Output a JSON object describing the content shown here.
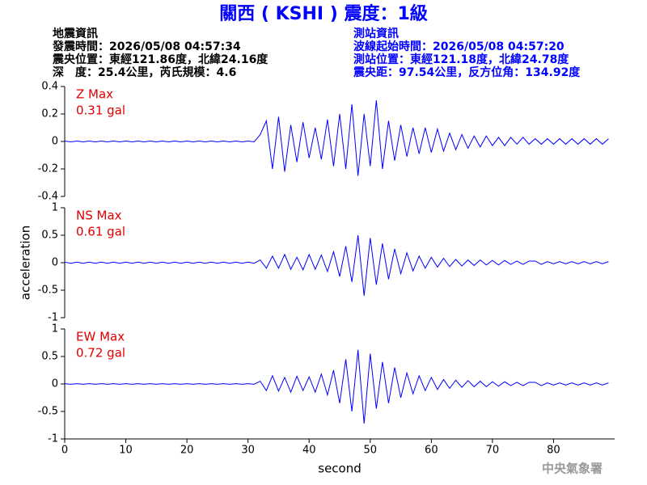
{
  "header": {
    "title": "關西 ( KSHI ) 震度：1級",
    "left": [
      "地震資訊",
      "發震時間：2026/05/08 04:57:34",
      "震央位置：東經121.86度，北緯24.16度",
      "深　度：25.4公里，芮氏規模：4.6"
    ],
    "right": [
      "測站資訊",
      "波線起始時間：2026/05/08 04:57:20",
      "測站位置：東經121.18度，北緯24.78度",
      "震央距：97.54公里，反方位角：134.92度"
    ]
  },
  "footer": "中央氣象署",
  "chart_data": [
    {
      "type": "line",
      "annotation": "0.31 gal",
      "xlim": [
        0,
        90
      ],
      "ylim": [
        -0.4,
        0.4
      ],
      "yticks": [
        0.4,
        0.2,
        0,
        -0.2,
        -0.4
      ],
      "x": [
        0,
        1,
        2,
        3,
        4,
        5,
        6,
        7,
        8,
        9,
        10,
        11,
        12,
        13,
        14,
        15,
        16,
        17,
        18,
        19,
        20,
        21,
        22,
        23,
        24,
        25,
        26,
        27,
        28,
        29,
        30,
        31,
        32,
        33,
        34,
        35,
        36,
        37,
        38,
        39,
        40,
        41,
        42,
        43,
        44,
        45,
        46,
        47,
        48,
        49,
        50,
        51,
        52,
        53,
        54,
        55,
        56,
        57,
        58,
        59,
        60,
        61,
        62,
        63,
        64,
        65,
        66,
        67,
        68,
        69,
        70,
        71,
        72,
        73,
        74,
        75,
        76,
        77,
        78,
        79,
        80,
        81,
        82,
        83,
        84,
        85,
        86,
        87,
        88,
        89
      ],
      "series": [
        {
          "name": "Z Max",
          "color": "#0000ff",
          "values": [
            0.003,
            -0.003,
            0.003,
            -0.003,
            0.003,
            -0.003,
            0.003,
            -0.003,
            0.003,
            -0.003,
            0.003,
            -0.003,
            0.003,
            -0.003,
            0.003,
            -0.003,
            0.003,
            -0.003,
            0.003,
            -0.003,
            0.003,
            -0.003,
            0.003,
            -0.003,
            0.003,
            -0.003,
            0.003,
            -0.003,
            0.003,
            -0.003,
            0.003,
            -0.003,
            0.05,
            0.15,
            -0.2,
            0.18,
            -0.22,
            0.12,
            -0.15,
            0.14,
            -0.12,
            0.1,
            -0.13,
            0.16,
            -0.18,
            0.2,
            -0.2,
            0.27,
            -0.25,
            0.2,
            -0.18,
            0.3,
            -0.2,
            0.15,
            -0.14,
            0.12,
            -0.11,
            0.1,
            -0.09,
            0.1,
            -0.08,
            0.09,
            -0.07,
            0.06,
            -0.06,
            0.05,
            -0.05,
            0.04,
            -0.04,
            0.04,
            -0.03,
            0.03,
            -0.03,
            0.03,
            -0.02,
            0.03,
            -0.02,
            0.02,
            -0.02,
            0.02,
            -0.02,
            0.02,
            -0.02,
            0.02,
            -0.02,
            0.02,
            -0.02,
            0.02,
            -0.02,
            0.02
          ]
        }
      ]
    },
    {
      "type": "line",
      "annotation": "0.61 gal",
      "y_label": "acceleration",
      "xlim": [
        0,
        90
      ],
      "ylim": [
        -1,
        1
      ],
      "yticks": [
        1,
        0.5,
        0,
        -0.5,
        -1
      ],
      "x": [
        0,
        1,
        2,
        3,
        4,
        5,
        6,
        7,
        8,
        9,
        10,
        11,
        12,
        13,
        14,
        15,
        16,
        17,
        18,
        19,
        20,
        21,
        22,
        23,
        24,
        25,
        26,
        27,
        28,
        29,
        30,
        31,
        32,
        33,
        34,
        35,
        36,
        37,
        38,
        39,
        40,
        41,
        42,
        43,
        44,
        45,
        46,
        47,
        48,
        49,
        50,
        51,
        52,
        53,
        54,
        55,
        56,
        57,
        58,
        59,
        60,
        61,
        62,
        63,
        64,
        65,
        66,
        67,
        68,
        69,
        70,
        71,
        72,
        73,
        74,
        75,
        76,
        77,
        78,
        79,
        80,
        81,
        82,
        83,
        84,
        85,
        86,
        87,
        88,
        89
      ],
      "series": [
        {
          "name": "NS Max",
          "color": "#0000ff",
          "values": [
            0.01,
            -0.01,
            0.01,
            -0.01,
            0.01,
            -0.01,
            0.01,
            -0.01,
            0.01,
            -0.01,
            0.01,
            -0.01,
            0.01,
            -0.01,
            0.01,
            -0.01,
            0.01,
            -0.01,
            0.01,
            -0.01,
            0.01,
            -0.01,
            0.01,
            -0.01,
            0.01,
            -0.01,
            0.01,
            -0.01,
            0.01,
            -0.01,
            0.01,
            -0.01,
            0.05,
            -0.1,
            0.12,
            -0.1,
            0.15,
            -0.12,
            0.1,
            -0.13,
            0.15,
            -0.12,
            0.14,
            -0.16,
            0.2,
            -0.25,
            0.3,
            -0.35,
            0.5,
            -0.6,
            0.45,
            -0.4,
            0.35,
            -0.3,
            0.25,
            -0.2,
            0.18,
            -0.15,
            0.12,
            -0.1,
            0.1,
            -0.08,
            0.08,
            -0.07,
            0.06,
            -0.06,
            0.05,
            -0.05,
            0.05,
            -0.04,
            0.04,
            -0.04,
            0.04,
            -0.03,
            0.03,
            -0.03,
            0.03,
            0.03,
            -0.03,
            0.02,
            -0.02,
            0.02,
            -0.02,
            0.02,
            -0.02,
            0.02,
            -0.02,
            0.02,
            -0.02,
            0.02
          ]
        }
      ]
    },
    {
      "type": "line",
      "annotation": "0.72 gal",
      "x_label": "second",
      "xlim": [
        0,
        90
      ],
      "xticks": [
        0,
        10,
        20,
        30,
        40,
        50,
        60,
        70,
        80
      ],
      "ylim": [
        -1,
        1
      ],
      "yticks": [
        1,
        0.5,
        0,
        -0.5,
        -1
      ],
      "x": [
        0,
        1,
        2,
        3,
        4,
        5,
        6,
        7,
        8,
        9,
        10,
        11,
        12,
        13,
        14,
        15,
        16,
        17,
        18,
        19,
        20,
        21,
        22,
        23,
        24,
        25,
        26,
        27,
        28,
        29,
        30,
        31,
        32,
        33,
        34,
        35,
        36,
        37,
        38,
        39,
        40,
        41,
        42,
        43,
        44,
        45,
        46,
        47,
        48,
        49,
        50,
        51,
        52,
        53,
        54,
        55,
        56,
        57,
        58,
        59,
        60,
        61,
        62,
        63,
        64,
        65,
        66,
        67,
        68,
        69,
        70,
        71,
        72,
        73,
        74,
        75,
        76,
        77,
        78,
        79,
        80,
        81,
        82,
        83,
        84,
        85,
        86,
        87,
        88,
        89
      ],
      "series": [
        {
          "name": "EW Max",
          "color": "#0000ff",
          "values": [
            0.005,
            -0.005,
            0.005,
            -0.005,
            0.005,
            -0.005,
            0.005,
            -0.005,
            0.005,
            -0.005,
            0.005,
            -0.005,
            0.005,
            -0.005,
            0.005,
            -0.005,
            0.005,
            -0.005,
            0.005,
            -0.005,
            0.005,
            -0.005,
            0.005,
            -0.005,
            0.005,
            -0.005,
            0.005,
            -0.005,
            0.005,
            -0.005,
            0.005,
            -0.005,
            0.05,
            -0.12,
            0.15,
            -0.13,
            0.12,
            -0.15,
            0.14,
            -0.12,
            0.13,
            -0.15,
            0.18,
            -0.2,
            0.25,
            -0.35,
            0.45,
            -0.5,
            0.62,
            -0.72,
            0.55,
            -0.45,
            0.4,
            -0.35,
            0.3,
            -0.25,
            0.2,
            -0.18,
            0.15,
            -0.12,
            0.12,
            -0.1,
            0.08,
            -0.08,
            0.07,
            -0.06,
            0.06,
            -0.05,
            0.05,
            -0.05,
            0.04,
            -0.04,
            0.04,
            -0.03,
            0.03,
            -0.03,
            0.03,
            0.03,
            -0.03,
            0.02,
            -0.02,
            0.02,
            -0.02,
            0.02,
            -0.02,
            0.02,
            -0.02,
            0.02,
            -0.02,
            0.02
          ]
        }
      ]
    }
  ]
}
